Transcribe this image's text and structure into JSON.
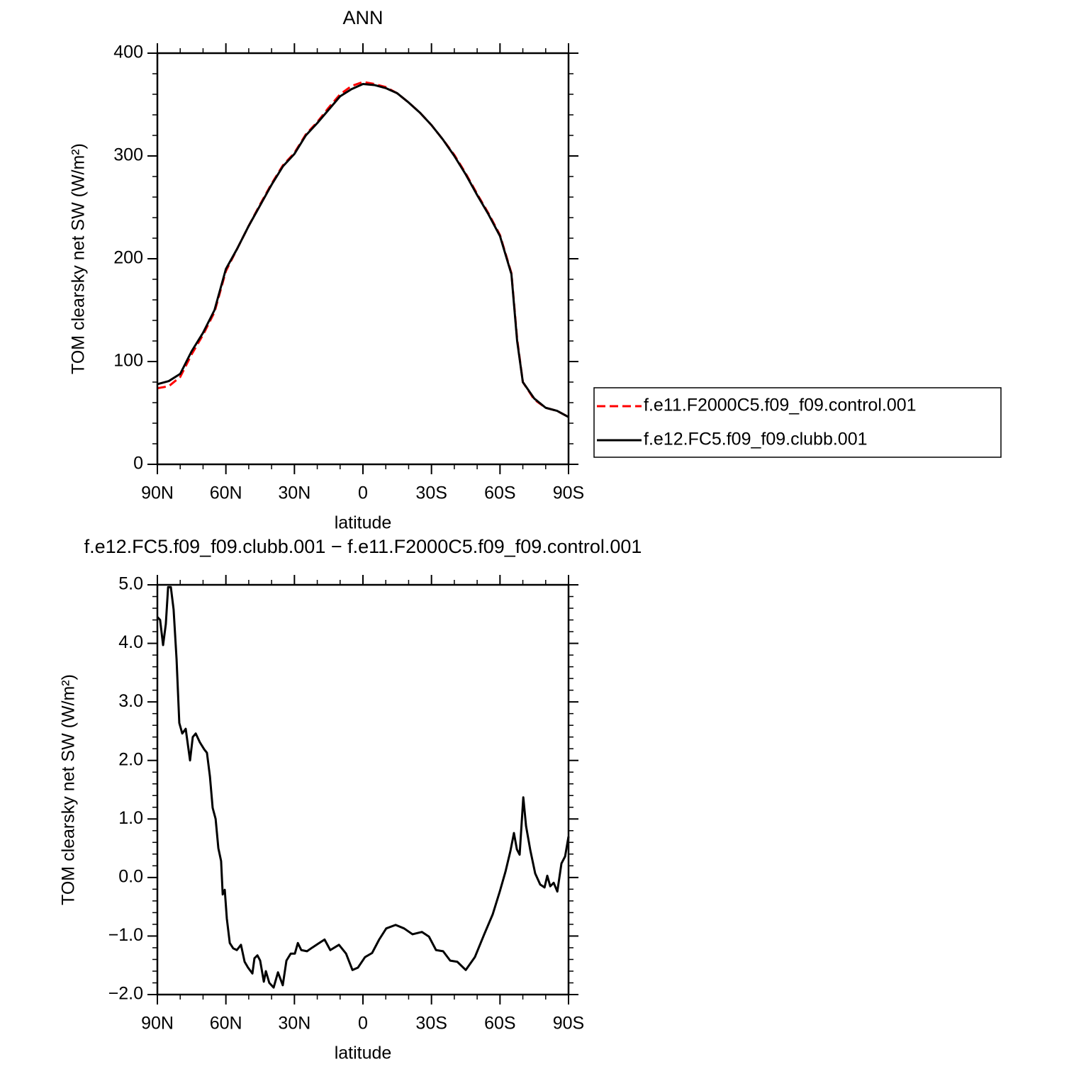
{
  "chart_data": [
    {
      "type": "line",
      "title": "ANN",
      "xlabel": "latitude",
      "ylabel": "TOM clearsky net SW (W/m²)",
      "x": [
        90,
        85,
        80,
        75,
        70,
        65,
        60,
        55,
        50,
        45,
        40,
        35,
        30,
        25,
        20,
        15,
        10,
        5,
        0,
        -5,
        -10,
        -15,
        -20,
        -25,
        -30,
        -35,
        -40,
        -45,
        -50,
        -55,
        -60,
        -65,
        -67.5,
        -70,
        -75,
        -80,
        -85,
        -90
      ],
      "series": [
        {
          "name": "f.e11.F2000C5.f09_f09.control.001",
          "color": "#ff0000",
          "dash": true,
          "values": [
            74,
            76,
            85,
            107,
            126,
            148,
            188,
            210,
            232,
            253,
            273,
            291,
            303,
            321,
            333,
            347,
            360,
            368,
            372,
            370,
            367,
            361,
            352,
            342,
            330,
            316,
            301,
            283,
            263,
            244,
            223,
            186,
            122,
            80,
            63,
            55,
            52,
            46
          ]
        },
        {
          "name": "f.e12.FC5.f09_f09.clubb.001",
          "color": "#000000",
          "dash": false,
          "values": [
            78,
            81,
            88,
            110,
            128,
            150,
            190,
            210,
            232,
            252,
            272,
            290,
            302,
            320,
            332,
            345,
            358,
            365,
            370,
            369,
            366,
            361,
            352,
            342,
            330,
            316,
            300,
            282,
            262,
            243,
            222,
            185,
            120,
            80,
            64,
            55,
            52,
            46
          ]
        }
      ],
      "xlim": [
        90,
        -90
      ],
      "xticks": [
        {
          "value": 90,
          "label": "90N"
        },
        {
          "value": 60,
          "label": "60N"
        },
        {
          "value": 30,
          "label": "30N"
        },
        0,
        {
          "value": -30,
          "label": "30S"
        },
        {
          "value": -60,
          "label": "60S"
        },
        {
          "value": -90,
          "label": "90S"
        }
      ],
      "xminorticks": [
        80,
        70,
        50,
        40,
        20,
        10,
        -10,
        -20,
        -40,
        -50,
        -70,
        -80
      ],
      "ylim": [
        0,
        400
      ],
      "yticks": [
        0,
        100,
        200,
        300,
        400
      ],
      "yminorticks": [
        20,
        40,
        60,
        80,
        120,
        140,
        160,
        180,
        220,
        240,
        260,
        280,
        320,
        340,
        360,
        380
      ],
      "legend": "right"
    },
    {
      "type": "line",
      "title": "f.e12.FC5.f09_f09.clubb.001 − f.e11.F2000C5.f09_f09.control.001",
      "xlabel": "latitude",
      "ylabel": "TOM clearsky net SW (W/m²)",
      "x": [
        90,
        88.8,
        87.5,
        86.3,
        85.3,
        84.1,
        82.9,
        81.6,
        80.4,
        79.1,
        77.6,
        75.7,
        74.5,
        73.2,
        71.4,
        69.5,
        68.3,
        67.0,
        65.8,
        64.5,
        63.3,
        62.1,
        61.4,
        60.5,
        59.6,
        58.3,
        56.8,
        55.2,
        53.4,
        51.8,
        50.3,
        48.4,
        47.5,
        46.2,
        45.0,
        43.4,
        42.5,
        41.0,
        39.1,
        37.2,
        35.1,
        33.5,
        31.6,
        29.8,
        28.5,
        27.0,
        24.5,
        22.3,
        19.2,
        16.8,
        14.3,
        10.5,
        7.4,
        4.6,
        2.2,
        -0.9,
        -4.0,
        -7.1,
        -10.2,
        -14.3,
        -18.0,
        -21.7,
        -25.8,
        -28.9,
        -32.0,
        -35.1,
        -38.2,
        -41.3,
        -45.0,
        -49.0,
        -53.1,
        -56.8,
        -59.9,
        -62.4,
        -64.6,
        -66.1,
        -67.4,
        -68.6,
        -70.2,
        -71.4,
        -73.3,
        -75.4,
        -77.6,
        -79.5,
        -80.7,
        -82.0,
        -83.5,
        -85.1,
        -86.9,
        -88.5,
        -90
      ],
      "values": [
        4.45,
        4.4,
        3.97,
        4.33,
        4.96,
        4.96,
        4.58,
        3.73,
        2.64,
        2.46,
        2.54,
        2.0,
        2.4,
        2.46,
        2.31,
        2.19,
        2.13,
        1.73,
        1.19,
        1.0,
        0.5,
        0.28,
        -0.29,
        -0.21,
        -0.7,
        -1.12,
        -1.21,
        -1.24,
        -1.15,
        -1.44,
        -1.54,
        -1.64,
        -1.38,
        -1.33,
        -1.42,
        -1.78,
        -1.6,
        -1.8,
        -1.88,
        -1.62,
        -1.84,
        -1.42,
        -1.3,
        -1.3,
        -1.12,
        -1.24,
        -1.26,
        -1.2,
        -1.12,
        -1.06,
        -1.24,
        -1.15,
        -1.3,
        -1.58,
        -1.54,
        -1.36,
        -1.29,
        -1.06,
        -0.87,
        -0.81,
        -0.87,
        -0.97,
        -0.93,
        -1.01,
        -1.24,
        -1.26,
        -1.42,
        -1.44,
        -1.58,
        -1.36,
        -0.97,
        -0.63,
        -0.24,
        0.1,
        0.46,
        0.76,
        0.48,
        0.39,
        1.37,
        0.88,
        0.46,
        0.07,
        -0.12,
        -0.17,
        0.03,
        -0.15,
        -0.09,
        -0.24,
        0.24,
        0.36,
        0.7
      ],
      "color": "#000000",
      "xlim": [
        90,
        -90
      ],
      "xticks": [
        {
          "value": 90,
          "label": "90N"
        },
        {
          "value": 60,
          "label": "60N"
        },
        {
          "value": 30,
          "label": "30N"
        },
        0,
        {
          "value": -30,
          "label": "30S"
        },
        {
          "value": -60,
          "label": "60S"
        },
        {
          "value": -90,
          "label": "90S"
        }
      ],
      "xminorticks": [
        80,
        70,
        50,
        40,
        20,
        10,
        -10,
        -20,
        -40,
        -50,
        -70,
        -80
      ],
      "ylim": [
        -2,
        5
      ],
      "yticks": [
        {
          "value": -2,
          "label": "−2.0"
        },
        {
          "value": -1,
          "label": "−1.0"
        },
        {
          "value": 0,
          "label": "0.0"
        },
        {
          "value": 1,
          "label": "1.0"
        },
        {
          "value": 2,
          "label": "2.0"
        },
        {
          "value": 3,
          "label": "3.0"
        },
        {
          "value": 4,
          "label": "4.0"
        },
        {
          "value": 5,
          "label": "5.0"
        }
      ],
      "yminorticks": [
        -1.8,
        -1.6,
        -1.4,
        -1.2,
        -0.8,
        -0.6,
        -0.4,
        -0.2,
        0.2,
        0.4,
        0.6,
        0.8,
        1.2,
        1.4,
        1.6,
        1.8,
        2.2,
        2.4,
        2.6,
        2.8,
        3.2,
        3.4,
        3.6,
        3.8,
        4.2,
        4.4,
        4.6,
        4.8
      ]
    }
  ]
}
